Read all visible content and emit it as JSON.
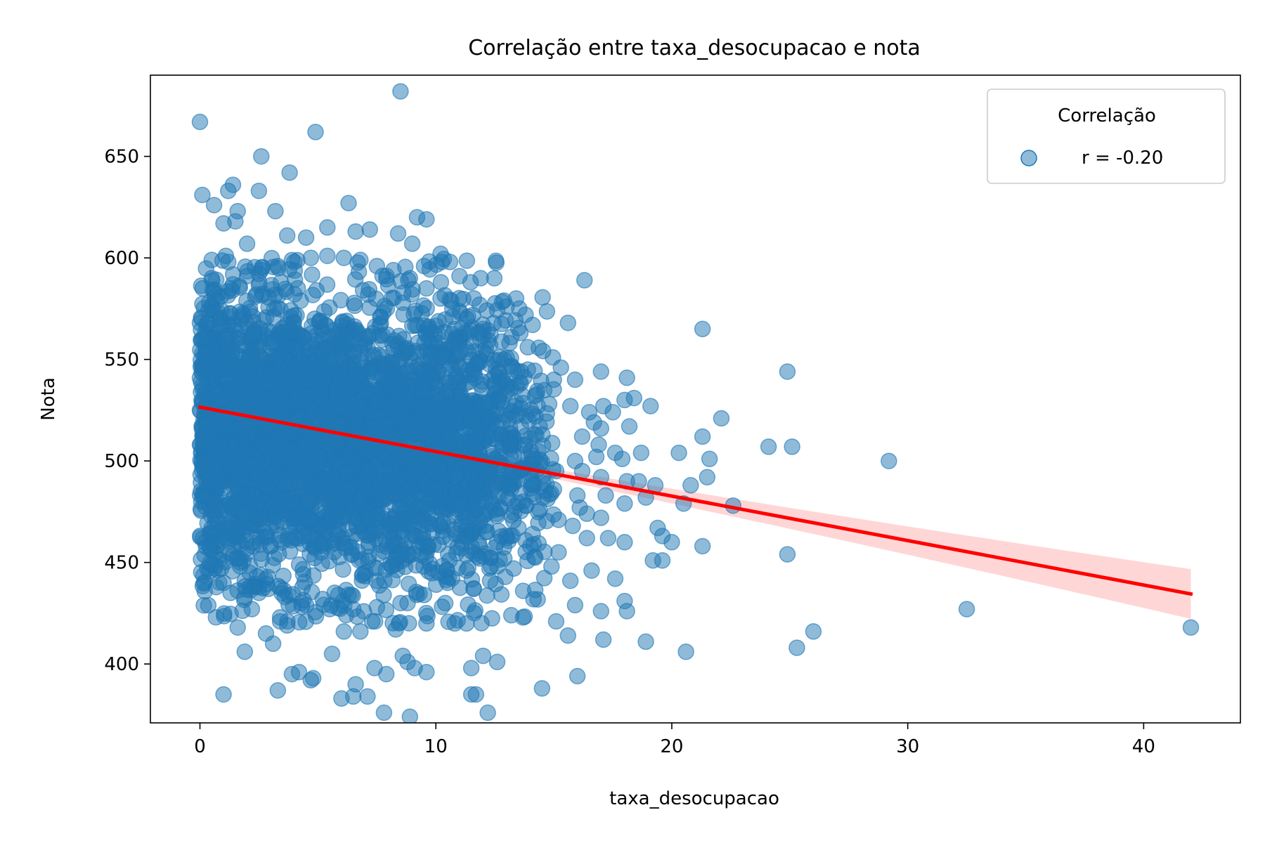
{
  "chart_data": {
    "type": "scatter",
    "title": "Correlação entre taxa_desocupacao e nota",
    "xlabel": "taxa_desocupacao",
    "ylabel": "Nota",
    "xlim": [
      -2.1,
      44.1
    ],
    "ylim": [
      371,
      690
    ],
    "xticks": [
      0,
      10,
      20,
      30,
      40
    ],
    "yticks": [
      400,
      450,
      500,
      550,
      600,
      650
    ],
    "grid": false,
    "legend": {
      "title": "Correlação",
      "entries": [
        "r = -0.20"
      ],
      "placement": "top-right"
    },
    "point_color": "#1f77b4",
    "line_color": "#ff0000",
    "band_color": "#ffcccc",
    "regression": {
      "x": [
        0,
        42
      ],
      "y": [
        526.5,
        434.5
      ],
      "ci_upper_end": 447.5,
      "ci_lower_end": 423.0
    },
    "series": [
      {
        "name": "r = -0.20",
        "points": [
          [
            0.0,
            667
          ],
          [
            8.5,
            682
          ],
          [
            4.9,
            662
          ],
          [
            2.6,
            650
          ],
          [
            3.8,
            642
          ],
          [
            0.1,
            631
          ],
          [
            2.5,
            633
          ],
          [
            1.4,
            636
          ],
          [
            1.2,
            633
          ],
          [
            0.6,
            626
          ],
          [
            6.3,
            627
          ],
          [
            1.6,
            623
          ],
          [
            3.2,
            623
          ],
          [
            9.2,
            620
          ],
          [
            9.6,
            619
          ],
          [
            1.5,
            618
          ],
          [
            1.0,
            617
          ],
          [
            5.4,
            615
          ],
          [
            7.2,
            614
          ],
          [
            6.6,
            613
          ],
          [
            3.7,
            611
          ],
          [
            8.4,
            612
          ],
          [
            4.5,
            610
          ],
          [
            2.0,
            607
          ],
          [
            9.0,
            607
          ],
          [
            10.2,
            602
          ],
          [
            0.5,
            599
          ],
          [
            1.1,
            601
          ],
          [
            10.6,
            598
          ],
          [
            9.5,
            596
          ],
          [
            11.0,
            591
          ],
          [
            11.9,
            590
          ],
          [
            16.3,
            589
          ],
          [
            0.5,
            590
          ],
          [
            0.6,
            583
          ],
          [
            1.3,
            585
          ],
          [
            13.0,
            576
          ],
          [
            13.4,
            580
          ],
          [
            13.8,
            572
          ],
          [
            14.1,
            567
          ],
          [
            15.6,
            568
          ],
          [
            12.0,
            565
          ],
          [
            13.2,
            561
          ],
          [
            13.9,
            556
          ],
          [
            0.0,
            568
          ],
          [
            0.1,
            560
          ],
          [
            0.2,
            552
          ],
          [
            0.0,
            541
          ],
          [
            0.1,
            537
          ],
          [
            0.0,
            525
          ],
          [
            21.3,
            565
          ],
          [
            24.9,
            544
          ],
          [
            17.0,
            544
          ],
          [
            18.1,
            541
          ],
          [
            15.0,
            540
          ],
          [
            15.3,
            546
          ],
          [
            15.9,
            540
          ],
          [
            13.9,
            545
          ],
          [
            14.2,
            532
          ],
          [
            14.8,
            528
          ],
          [
            15.7,
            527
          ],
          [
            16.5,
            524
          ],
          [
            17.1,
            527
          ],
          [
            17.5,
            524
          ],
          [
            18.0,
            530
          ],
          [
            18.4,
            531
          ],
          [
            19.1,
            527
          ],
          [
            16.7,
            519
          ],
          [
            17.0,
            516
          ],
          [
            18.2,
            517
          ],
          [
            16.2,
            512
          ],
          [
            16.9,
            508
          ],
          [
            17.6,
            504
          ],
          [
            18.7,
            504
          ],
          [
            15.9,
            500
          ],
          [
            16.8,
            502
          ],
          [
            17.9,
            501
          ],
          [
            15.1,
            495
          ],
          [
            16.2,
            495
          ],
          [
            17.0,
            492
          ],
          [
            18.1,
            490
          ],
          [
            18.6,
            490
          ],
          [
            19.3,
            488
          ],
          [
            15.0,
            486
          ],
          [
            16.0,
            483
          ],
          [
            17.2,
            483
          ],
          [
            18.0,
            479
          ],
          [
            18.9,
            482
          ],
          [
            16.1,
            477
          ],
          [
            16.4,
            474
          ],
          [
            17.0,
            472
          ],
          [
            15.2,
            471
          ],
          [
            15.8,
            468
          ],
          [
            16.4,
            462
          ],
          [
            19.4,
            467
          ],
          [
            19.6,
            463
          ],
          [
            20.0,
            460
          ],
          [
            19.2,
            451
          ],
          [
            19.6,
            451
          ],
          [
            17.3,
            462
          ],
          [
            18.0,
            460
          ],
          [
            14.4,
            476
          ],
          [
            14.1,
            464
          ],
          [
            15.2,
            455
          ],
          [
            14.9,
            448
          ],
          [
            16.6,
            446
          ],
          [
            15.7,
            441
          ],
          [
            17.6,
            442
          ],
          [
            18.0,
            431
          ],
          [
            18.1,
            426
          ],
          [
            15.9,
            429
          ],
          [
            17.0,
            426
          ],
          [
            15.1,
            421
          ],
          [
            15.6,
            414
          ],
          [
            17.1,
            412
          ],
          [
            18.9,
            411
          ],
          [
            16.0,
            394
          ],
          [
            14.5,
            388
          ],
          [
            20.3,
            504
          ],
          [
            21.3,
            512
          ],
          [
            21.6,
            501
          ],
          [
            20.8,
            488
          ],
          [
            21.5,
            492
          ],
          [
            22.1,
            521
          ],
          [
            22.6,
            478
          ],
          [
            20.5,
            479
          ],
          [
            21.3,
            458
          ],
          [
            20.6,
            406
          ],
          [
            24.1,
            507
          ],
          [
            25.1,
            507
          ],
          [
            24.9,
            454
          ],
          [
            25.3,
            408
          ],
          [
            26.0,
            416
          ],
          [
            29.2,
            500
          ],
          [
            32.5,
            427
          ],
          [
            42.0,
            418
          ],
          [
            12.0,
            404
          ],
          [
            12.6,
            401
          ],
          [
            12.2,
            376
          ],
          [
            11.5,
            385
          ],
          [
            11.7,
            385
          ],
          [
            11.5,
            398
          ],
          [
            13.2,
            424
          ],
          [
            13.7,
            436
          ],
          [
            10.8,
            420
          ],
          [
            11.3,
            420
          ],
          [
            9.6,
            420
          ],
          [
            9.1,
            398
          ],
          [
            8.9,
            374
          ],
          [
            8.8,
            401
          ],
          [
            7.8,
            376
          ],
          [
            7.9,
            395
          ],
          [
            6.5,
            384
          ],
          [
            6.0,
            383
          ],
          [
            7.1,
            384
          ],
          [
            7.4,
            398
          ],
          [
            6.6,
            390
          ],
          [
            1.0,
            385
          ],
          [
            3.3,
            387
          ],
          [
            4.8,
            393
          ],
          [
            4.2,
            396
          ],
          [
            4.7,
            392
          ],
          [
            3.9,
            395
          ],
          [
            5.6,
            405
          ],
          [
            6.1,
            416
          ],
          [
            6.8,
            416
          ],
          [
            8.3,
            417
          ],
          [
            8.6,
            404
          ],
          [
            9.6,
            396
          ],
          [
            1.9,
            406
          ],
          [
            1.6,
            418
          ],
          [
            2.8,
            415
          ],
          [
            3.1,
            410
          ],
          [
            3.7,
            419
          ],
          [
            0.5,
            449
          ],
          [
            0.9,
            447
          ],
          [
            0.4,
            458
          ],
          [
            1.0,
            440
          ],
          [
            1.3,
            435
          ],
          [
            1.9,
            441
          ],
          [
            2.5,
            435
          ],
          [
            1.7,
            450
          ],
          [
            0.5,
            467
          ],
          [
            0.9,
            466
          ],
          [
            0.1,
            483
          ],
          [
            0.3,
            495
          ],
          [
            0.0,
            508
          ],
          [
            2.2,
            427
          ],
          [
            3.4,
            423
          ],
          [
            4.3,
            430
          ],
          [
            5.2,
            432
          ],
          [
            7.3,
            421
          ],
          [
            8.8,
            430
          ],
          [
            10.4,
            430
          ],
          [
            11.6,
            437
          ],
          [
            12.3,
            441
          ],
          [
            13.3,
            447
          ],
          [
            12.9,
            452
          ],
          [
            13.0,
            462
          ],
          [
            14.0,
            458
          ],
          [
            13.5,
            467
          ],
          [
            12.6,
            473
          ],
          [
            13.7,
            480
          ],
          [
            13.1,
            487
          ],
          [
            14.1,
            488
          ],
          [
            13.6,
            496
          ],
          [
            14.2,
            501
          ],
          [
            13.8,
            508
          ],
          [
            14.4,
            517
          ],
          [
            13.5,
            523
          ],
          [
            12.8,
            529
          ],
          [
            13.2,
            536
          ],
          [
            12.5,
            542
          ],
          [
            12.9,
            550
          ],
          [
            12.3,
            557
          ],
          [
            11.8,
            563
          ],
          [
            11.3,
            570
          ],
          [
            10.7,
            575
          ],
          [
            10.2,
            580
          ],
          [
            9.6,
            585
          ],
          [
            8.9,
            590
          ],
          [
            8.2,
            594
          ],
          [
            7.5,
            596
          ],
          [
            6.8,
            599
          ],
          [
            6.1,
            600
          ],
          [
            5.4,
            601
          ],
          [
            4.7,
            600
          ],
          [
            4.0,
            598
          ],
          [
            3.3,
            596
          ],
          [
            2.6,
            594
          ],
          [
            2.0,
            591
          ],
          [
            1.4,
            587
          ],
          [
            0.9,
            581
          ],
          [
            0.5,
            575
          ],
          [
            0.3,
            568
          ],
          [
            0.2,
            561
          ],
          [
            0.1,
            553
          ],
          [
            0.2,
            546
          ],
          [
            0.1,
            530
          ],
          [
            0.3,
            518
          ],
          [
            0.2,
            500
          ],
          [
            0.5,
            490
          ],
          [
            0.7,
            476
          ],
          [
            1.1,
            462
          ],
          [
            1.6,
            452
          ],
          [
            2.1,
            445
          ],
          [
            2.9,
            437
          ],
          [
            3.6,
            433
          ],
          [
            4.5,
            429
          ],
          [
            5.5,
            427
          ],
          [
            6.5,
            427
          ],
          [
            7.5,
            428
          ],
          [
            8.5,
            430
          ],
          [
            9.5,
            434
          ],
          [
            10.5,
            440
          ],
          [
            11.3,
            446
          ],
          [
            12.0,
            453
          ],
          [
            12.6,
            460
          ]
        ],
        "dense_regions": [
          {
            "cx": 5.6,
            "cy": 510,
            "sx": 3.6,
            "sy": 34,
            "n": 2600
          },
          {
            "cx": 11.0,
            "cy": 505,
            "sx": 1.9,
            "sy": 36,
            "n": 650
          },
          {
            "cx": 1.8,
            "cy": 520,
            "sx": 1.2,
            "sy": 34,
            "n": 500
          }
        ]
      }
    ]
  }
}
